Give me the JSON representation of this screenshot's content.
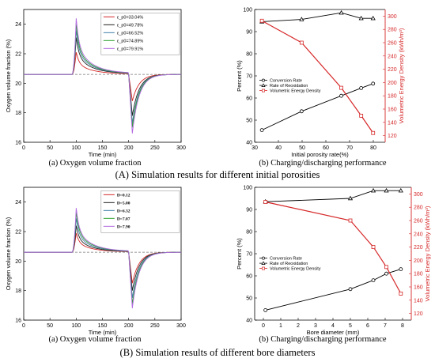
{
  "colors": {
    "red": "#d62728",
    "black": "#000000",
    "baseline": "#777777",
    "curves": [
      "#d62728",
      "#222222",
      "#3f7fa8",
      "#2ca02c",
      "#b36ae2"
    ]
  },
  "captions": {
    "row_a_left": "(a) Oxygen volume fraction",
    "row_a_right": "(b) Charging/discharging performance",
    "row_a_main": "(A) Simulation results for different initial porosities",
    "row_b_left": "(a) Oxygen volume fraction",
    "row_b_right": "(b) Charging/discharging performance",
    "row_b_main": "(B) Simulation results of different bore diameters"
  },
  "chart_data": [
    {
      "id": "A_a",
      "type": "line",
      "title": "",
      "xlabel": "Time (min)",
      "ylabel": "Oxygen volume fraction (%)",
      "xlim": [
        0,
        300
      ],
      "ylim": [
        16,
        25
      ],
      "xticks": [
        0,
        50,
        100,
        150,
        200,
        250,
        300
      ],
      "yticks": [
        16,
        18,
        20,
        22,
        24
      ],
      "baseline": 20.6,
      "legend_position": "top-right",
      "series": [
        {
          "name": "ε_p0=33.04%",
          "peak": 22.1,
          "trough": 18.8
        },
        {
          "name": "ε_p0=49.78%",
          "peak": 23.1,
          "trough": 17.8
        },
        {
          "name": "ε_p0=66.52%",
          "peak": 23.6,
          "trough": 17.3
        },
        {
          "name": "ε_p0=74.89%",
          "peak": 24.0,
          "trough": 17.0
        },
        {
          "name": "ε_p0=79.91%",
          "peak": 24.4,
          "trough": 16.6
        }
      ]
    },
    {
      "id": "A_b",
      "type": "line",
      "title": "",
      "xlabel": "Initial porosity rate(%)",
      "ylabel": "Percent (%)",
      "ylabel_right": "Volumetric Energy Density (kWh/m³)",
      "xlim": [
        30,
        85
      ],
      "ylim": [
        40,
        100
      ],
      "ylim_right": [
        110,
        310
      ],
      "xticks": [
        30,
        40,
        50,
        60,
        70,
        80
      ],
      "yticks": [
        40,
        50,
        60,
        70,
        80,
        90,
        100
      ],
      "yticks_right": [
        120,
        140,
        160,
        180,
        200,
        220,
        240,
        260,
        280,
        300
      ],
      "legend_position": "center-left",
      "series": [
        {
          "name": "Conversion Rate",
          "axis": "left",
          "marker": "circle",
          "x": [
            33.04,
            49.78,
            66.52,
            74.89,
            79.91
          ],
          "values": [
            45.5,
            54,
            61,
            64.5,
            66.5
          ]
        },
        {
          "name": "Rate of Reoxidation",
          "axis": "left",
          "marker": "triangle",
          "x": [
            33.04,
            49.78,
            66.52,
            74.89,
            79.91
          ],
          "values": [
            94.5,
            95.5,
            98.5,
            96,
            96
          ]
        },
        {
          "name": "Volumetric Energy Density",
          "axis": "right",
          "marker": "square",
          "x": [
            33.04,
            49.78,
            66.52,
            74.89,
            79.91
          ],
          "values": [
            293,
            260,
            192,
            150,
            124
          ]
        }
      ]
    },
    {
      "id": "B_a",
      "type": "line",
      "title": "",
      "xlabel": "Time (min)",
      "ylabel": "Oxygen volume fraction (%)",
      "xlim": [
        0,
        300
      ],
      "ylim": [
        16,
        25
      ],
      "xticks": [
        0,
        50,
        100,
        150,
        200,
        250,
        300
      ],
      "yticks": [
        16,
        18,
        20,
        22,
        24
      ],
      "baseline": 20.6,
      "legend_position": "top-right",
      "series": [
        {
          "name": "D=0.12",
          "peak": 21.9,
          "trough": 18.5
        },
        {
          "name": "D=5.00",
          "peak": 22.4,
          "trough": 18.0
        },
        {
          "name": "D=6.32",
          "peak": 22.9,
          "trough": 17.5
        },
        {
          "name": "D=7.07",
          "peak": 23.3,
          "trough": 17.1
        },
        {
          "name": "D=7.90",
          "peak": 23.6,
          "trough": 16.8
        }
      ]
    },
    {
      "id": "B_b",
      "type": "line",
      "title": "",
      "xlabel": "Bore diameter (mm)",
      "ylabel": "Percent (%)",
      "ylabel_right": "Volumetric Energy Density (kWh/m³)",
      "xlim": [
        -0.5,
        8.5
      ],
      "ylim": [
        40,
        100
      ],
      "ylim_right": [
        110,
        310
      ],
      "xticks": [
        0,
        1,
        2,
        3,
        4,
        5,
        6,
        7,
        8
      ],
      "yticks": [
        40,
        50,
        60,
        70,
        80,
        90,
        100
      ],
      "yticks_right": [
        120,
        140,
        160,
        180,
        200,
        220,
        240,
        260,
        280,
        300
      ],
      "legend_position": "center-left",
      "series": [
        {
          "name": "Conversion Rate",
          "axis": "left",
          "marker": "circle",
          "x": [
            0.12,
            5.0,
            6.32,
            7.07,
            7.9
          ],
          "values": [
            44.5,
            54,
            58,
            61,
            63
          ]
        },
        {
          "name": "Rate of Reoxidation",
          "axis": "left",
          "marker": "triangle",
          "x": [
            0.12,
            5.0,
            6.32,
            7.07,
            7.9
          ],
          "values": [
            93.5,
            95,
            98.5,
            98.5,
            98.5
          ]
        },
        {
          "name": "Volumetric Energy Density",
          "axis": "right",
          "marker": "square",
          "x": [
            0.12,
            5.0,
            6.32,
            7.07,
            7.9
          ],
          "values": [
            288,
            260,
            220,
            190,
            150
          ]
        }
      ]
    }
  ]
}
